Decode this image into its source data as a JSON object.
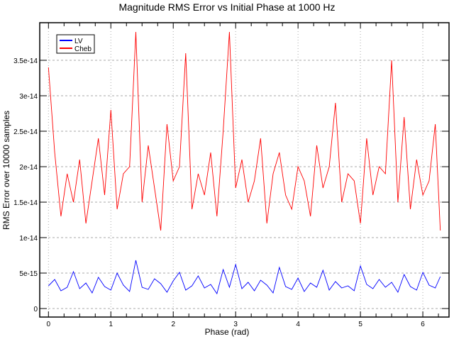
{
  "chart_data": {
    "type": "line",
    "title": "Magnitude RMS Error vs Initial Phase at 1000 Hz",
    "xlabel": "Phase (rad)",
    "ylabel": "RMS Error over 10000 samples",
    "xlim": [
      -0.14,
      6.42
    ],
    "ylim": [
      -1.2e-15,
      4.03e-14
    ],
    "x_ticks": [
      0,
      1,
      2,
      3,
      4,
      5,
      6
    ],
    "x_tick_labels": [
      "0",
      "1",
      "2",
      "3",
      "4",
      "5",
      "6"
    ],
    "y_ticks": [
      0,
      5e-15,
      1e-14,
      1.5e-14,
      2e-14,
      2.5e-14,
      3e-14,
      3.5e-14
    ],
    "y_tick_labels": [
      "0",
      "5e-15",
      "1e-14",
      "1.5e-14",
      "2e-14",
      "2.5e-14",
      "3e-14",
      "3.5e-14"
    ],
    "grid": true,
    "legend_position": "top-left",
    "x": [
      0,
      0.1,
      0.2,
      0.3,
      0.4,
      0.5,
      0.6,
      0.7,
      0.8,
      0.9,
      1.0,
      1.1,
      1.2,
      1.3,
      1.4,
      1.5,
      1.6,
      1.7,
      1.8,
      1.9,
      2.0,
      2.1,
      2.2,
      2.3,
      2.4,
      2.5,
      2.6,
      2.7,
      2.8,
      2.9,
      3.0,
      3.1,
      3.2,
      3.3,
      3.4,
      3.5,
      3.6,
      3.7,
      3.8,
      3.9,
      4.0,
      4.1,
      4.2,
      4.3,
      4.4,
      4.5,
      4.6,
      4.7,
      4.8,
      4.9,
      5.0,
      5.1,
      5.2,
      5.3,
      5.4,
      5.5,
      5.6,
      5.7,
      5.8,
      5.9,
      6.0,
      6.1,
      6.2,
      6.28
    ],
    "series": [
      {
        "name": "LV",
        "color": "#0000ff",
        "values": [
          3.2e-15,
          4.1e-15,
          2.5e-15,
          3e-15,
          5.2e-15,
          2.8e-15,
          3.6e-15,
          2.2e-15,
          4.4e-15,
          3.1e-15,
          2.6e-15,
          5e-15,
          3.3e-15,
          2.4e-15,
          6.8e-15,
          3e-15,
          2.7e-15,
          4.2e-15,
          3.5e-15,
          2.3e-15,
          3.9e-15,
          5.1e-15,
          2.6e-15,
          3.2e-15,
          4.6e-15,
          2.9e-15,
          3.4e-15,
          2.1e-15,
          5.5e-15,
          3e-15,
          6.2e-15,
          2.8e-15,
          3.7e-15,
          2.5e-15,
          4e-15,
          3.3e-15,
          2.2e-15,
          5.8e-15,
          3.1e-15,
          2.7e-15,
          4.3e-15,
          2.4e-15,
          3.6e-15,
          3e-15,
          5.4e-15,
          2.6e-15,
          3.8e-15,
          2.9e-15,
          3.2e-15,
          2.5e-15,
          6e-15,
          3.4e-15,
          2.8e-15,
          4.1e-15,
          3e-15,
          3.7e-15,
          2.3e-15,
          4.8e-15,
          3.1e-15,
          2.6e-15,
          5.1e-15,
          3.3e-15,
          2.9e-15,
          4.5e-15
        ]
      },
      {
        "name": "Cheb",
        "color": "#ff0000",
        "values": [
          3.4e-14,
          2.2e-14,
          1.3e-14,
          1.9e-14,
          1.5e-14,
          2.1e-14,
          1.2e-14,
          1.8e-14,
          2.4e-14,
          1.6e-14,
          2.8e-14,
          1.4e-14,
          1.9e-14,
          2e-14,
          3.9e-14,
          1.5e-14,
          2.3e-14,
          1.7e-14,
          1.1e-14,
          2.6e-14,
          1.8e-14,
          2e-14,
          3.6e-14,
          1.4e-14,
          1.9e-14,
          1.6e-14,
          2.2e-14,
          1.3e-14,
          2.5e-14,
          3.9e-14,
          1.7e-14,
          2.1e-14,
          1.5e-14,
          1.8e-14,
          2.4e-14,
          1.2e-14,
          1.9e-14,
          2.2e-14,
          1.6e-14,
          1.4e-14,
          2e-14,
          1.8e-14,
          1.3e-14,
          2.3e-14,
          1.7e-14,
          2e-14,
          2.9e-14,
          1.5e-14,
          1.9e-14,
          1.8e-14,
          1.2e-14,
          2.4e-14,
          1.6e-14,
          2e-14,
          1.9e-14,
          3.5e-14,
          1.5e-14,
          2.7e-14,
          1.4e-14,
          2.1e-14,
          1.6e-14,
          1.8e-14,
          2.6e-14,
          1.1e-14
        ]
      }
    ]
  }
}
